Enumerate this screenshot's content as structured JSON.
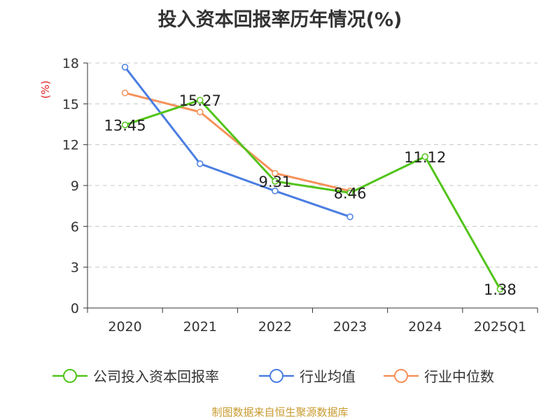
{
  "title": "投入资本回报率历年情况(%)",
  "source": "制图数据来自恒生聚源数据库",
  "chart_data": {
    "type": "line",
    "title": "投入资本回报率历年情况(%)",
    "ylabel": "(%)",
    "xlabel": "",
    "categories": [
      "2020",
      "2021",
      "2022",
      "2023",
      "2024",
      "2025Q1"
    ],
    "ylim": [
      0,
      18
    ],
    "yticks": [
      0,
      3,
      6,
      9,
      12,
      15,
      18
    ],
    "grid": true,
    "legend": "bottom",
    "series": [
      {
        "name": "公司投入资本回报率",
        "color": "#52c41a",
        "values": [
          13.45,
          15.27,
          9.31,
          8.46,
          11.12,
          1.38
        ],
        "labels": [
          "13.45",
          "15.27",
          "9.31",
          "8.46",
          "11.12",
          "1.38"
        ]
      },
      {
        "name": "行业均值",
        "color": "#4a7ee0",
        "values": [
          17.7,
          10.6,
          8.6,
          6.7,
          null,
          null
        ]
      },
      {
        "name": "行业中位数",
        "color": "#f5915a",
        "values": [
          15.8,
          14.4,
          9.9,
          8.6,
          null,
          null
        ]
      }
    ]
  }
}
